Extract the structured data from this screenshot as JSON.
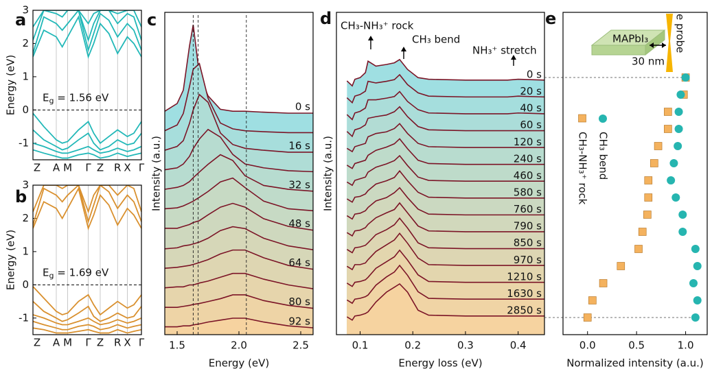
{
  "chart_data": [
    {
      "type": "line",
      "panel_label": "a",
      "ylabel": "Energy (eV)",
      "color": "#22b8b8",
      "xlim": [
        0,
        1
      ],
      "ylim": [
        -1.5,
        3
      ],
      "yticks": [
        -1,
        0,
        1,
        2,
        3
      ],
      "xticks": [
        {
          "value": 0,
          "label": "Z"
        },
        {
          "value": 0.215,
          "label": "A"
        },
        {
          "value": 0.32,
          "label": "M"
        },
        {
          "value": 0.51,
          "label": "Γ"
        },
        {
          "value": 0.62,
          "label": "Z"
        },
        {
          "value": 0.78,
          "label": "R"
        },
        {
          "value": 0.87,
          "label": "X"
        },
        {
          "value": 1,
          "label": "Γ"
        }
      ],
      "zero_line": true,
      "annotation": {
        "main": "E",
        "sub": "g",
        "rest": " = 1.56 eV"
      },
      "x": [
        0,
        0.1,
        0.215,
        0.27,
        0.32,
        0.42,
        0.51,
        0.56,
        0.62,
        0.7,
        0.78,
        0.87,
        0.93,
        1
      ],
      "series": [
        {
          "values": [
            1.6,
            2.4,
            2.2,
            1.9,
            2.2,
            2.8,
            1.6,
            2.0,
            2.6,
            2.3,
            1.7,
            2.2,
            2.0,
            1.6
          ]
        },
        {
          "values": [
            1.7,
            2.8,
            2.6,
            2.4,
            2.6,
            3.0,
            1.8,
            2.3,
            2.9,
            2.7,
            2.2,
            2.6,
            2.4,
            1.8
          ]
        },
        {
          "values": [
            2.1,
            3.0,
            2.9,
            2.8,
            3.0,
            3.0,
            2.1,
            2.6,
            3.0,
            3.0,
            2.6,
            2.9,
            2.8,
            2.1
          ]
        },
        {
          "values": [
            2.5,
            3.0,
            3.0,
            3.0,
            3.0,
            3.0,
            2.6,
            2.9,
            3.0,
            3.0,
            2.9,
            3.0,
            3.0,
            2.5
          ]
        },
        {
          "values": [
            -0.1,
            -0.5,
            -0.9,
            -1.0,
            -0.95,
            -0.6,
            -0.35,
            -0.7,
            -1.0,
            -0.8,
            -0.6,
            -0.8,
            -0.7,
            -0.35
          ]
        },
        {
          "values": [
            -0.6,
            -0.9,
            -1.1,
            -1.2,
            -1.15,
            -0.9,
            -0.7,
            -1.0,
            -1.2,
            -1.1,
            -0.9,
            -1.05,
            -1.0,
            -0.7
          ]
        },
        {
          "values": [
            -1.0,
            -1.1,
            -1.25,
            -1.3,
            -1.3,
            -1.2,
            -1.1,
            -1.2,
            -1.3,
            -1.25,
            -1.15,
            -1.25,
            -1.2,
            -1.1
          ]
        },
        {
          "values": [
            -1.2,
            -1.3,
            -1.4,
            -1.45,
            -1.45,
            -1.35,
            -1.3,
            -1.35,
            -1.45,
            -1.4,
            -1.3,
            -1.4,
            -1.35,
            -1.3
          ]
        }
      ]
    },
    {
      "type": "line",
      "panel_label": "b",
      "ylabel": "Energy (eV)",
      "color": "#d9902e",
      "xlim": [
        0,
        1
      ],
      "ylim": [
        -1.5,
        3
      ],
      "yticks": [
        -1,
        0,
        1,
        2,
        3
      ],
      "xticks": [
        {
          "value": 0,
          "label": "Z"
        },
        {
          "value": 0.215,
          "label": "A"
        },
        {
          "value": 0.32,
          "label": "M"
        },
        {
          "value": 0.51,
          "label": "Γ"
        },
        {
          "value": 0.62,
          "label": "Z"
        },
        {
          "value": 0.78,
          "label": "R"
        },
        {
          "value": 0.87,
          "label": "X"
        },
        {
          "value": 1,
          "label": "Γ"
        }
      ],
      "zero_line": true,
      "annotation": {
        "main": "E",
        "sub": "g",
        "rest": " = 1.69 eV"
      },
      "x": [
        0,
        0.1,
        0.215,
        0.27,
        0.32,
        0.42,
        0.51,
        0.56,
        0.62,
        0.7,
        0.78,
        0.87,
        0.93,
        1
      ],
      "series": [
        {
          "values": [
            1.7,
            2.5,
            2.3,
            2.0,
            2.3,
            2.9,
            1.7,
            2.1,
            2.7,
            2.4,
            1.8,
            2.3,
            2.1,
            1.7
          ]
        },
        {
          "values": [
            1.8,
            2.9,
            2.7,
            2.5,
            2.7,
            3.0,
            1.9,
            2.4,
            3.0,
            2.8,
            2.3,
            2.7,
            2.5,
            1.9
          ]
        },
        {
          "values": [
            2.2,
            3.0,
            3.0,
            2.9,
            3.0,
            3.0,
            2.2,
            2.7,
            3.0,
            3.0,
            2.7,
            3.0,
            2.9,
            2.2
          ]
        },
        {
          "values": [
            -0.05,
            -0.4,
            -0.8,
            -0.9,
            -0.85,
            -0.5,
            -0.3,
            -0.6,
            -0.9,
            -0.7,
            -0.5,
            -0.7,
            -0.6,
            -0.3
          ]
        },
        {
          "values": [
            -0.5,
            -0.8,
            -1.0,
            -1.1,
            -1.05,
            -0.85,
            -0.65,
            -0.95,
            -1.1,
            -1.0,
            -0.85,
            -1.0,
            -0.95,
            -0.65
          ]
        },
        {
          "values": [
            -0.9,
            -1.0,
            -1.15,
            -1.2,
            -1.2,
            -1.1,
            -1.0,
            -1.1,
            -1.2,
            -1.15,
            -1.05,
            -1.15,
            -1.1,
            -1.0
          ]
        },
        {
          "values": [
            -1.1,
            -1.2,
            -1.3,
            -1.35,
            -1.35,
            -1.25,
            -1.2,
            -1.25,
            -1.35,
            -1.3,
            -1.2,
            -1.3,
            -1.25,
            -1.2
          ]
        },
        {
          "values": [
            -1.3,
            -1.35,
            -1.45,
            -1.45,
            -1.45,
            -1.4,
            -1.35,
            -1.4,
            -1.45,
            -1.45,
            -1.35,
            -1.45,
            -1.4,
            -1.35
          ]
        }
      ]
    },
    {
      "type": "waterfall",
      "panel_label": "c",
      "xlabel": "Energy  (eV)",
      "ylabel": "Intensity (a.u.)",
      "line_color": "#7b1426",
      "fill_colors": [
        "#9fdfe2",
        "#f6d3a0"
      ],
      "xlim": [
        1.4,
        2.6
      ],
      "xticks": [
        1.5,
        {
          "value": 2,
          "label": "2.0"
        },
        2.5
      ],
      "vlines": [
        1.63,
        1.67,
        2.06
      ],
      "x": [
        1.4,
        1.5,
        1.55,
        1.6,
        1.63,
        1.68,
        1.75,
        1.85,
        1.95,
        2.05,
        2.2,
        2.4,
        2.6
      ],
      "categories": [
        "0 s",
        null,
        "16 s",
        null,
        "32 s",
        null,
        "48 s",
        null,
        "64 s",
        null,
        "80 s",
        "92 s"
      ],
      "series": [
        {
          "values": [
            0.1,
            0.5,
            1.2,
            3.5,
            4.6,
            2.0,
            0.9,
            0.2,
            0.1,
            0.1,
            0.05,
            0,
            0
          ]
        },
        {
          "values": [
            0.1,
            0.4,
            1.0,
            2.4,
            3.3,
            3.6,
            1.8,
            0.5,
            0.2,
            0.1,
            0.05,
            0,
            0
          ]
        },
        {
          "values": [
            0.1,
            0.3,
            0.6,
            1.5,
            2.2,
            3.0,
            2.6,
            1.0,
            0.4,
            0.2,
            0.1,
            0,
            0
          ]
        },
        {
          "values": [
            0.1,
            0.2,
            0.4,
            0.8,
            1.2,
            1.7,
            2.2,
            1.8,
            0.9,
            0.4,
            0.2,
            0.05,
            0
          ]
        },
        {
          "values": [
            0.1,
            0.2,
            0.3,
            0.5,
            0.7,
            1.0,
            1.4,
            1.9,
            1.6,
            0.8,
            0.3,
            0.1,
            0
          ]
        },
        {
          "values": [
            0.1,
            0.15,
            0.25,
            0.4,
            0.5,
            0.7,
            1.0,
            1.5,
            1.7,
            1.2,
            0.5,
            0.1,
            0
          ]
        },
        {
          "values": [
            0.1,
            0.1,
            0.2,
            0.3,
            0.4,
            0.5,
            0.8,
            1.2,
            1.4,
            1.2,
            0.6,
            0.2,
            0
          ]
        },
        {
          "values": [
            0.05,
            0.1,
            0.2,
            0.25,
            0.3,
            0.4,
            0.6,
            1.0,
            1.2,
            1.1,
            0.6,
            0.2,
            0
          ]
        },
        {
          "values": [
            0.05,
            0.1,
            0.15,
            0.2,
            0.25,
            0.35,
            0.5,
            0.8,
            1.0,
            1.0,
            0.6,
            0.2,
            0
          ]
        },
        {
          "values": [
            0.05,
            0.1,
            0.1,
            0.2,
            0.2,
            0.3,
            0.4,
            0.6,
            0.8,
            0.8,
            0.5,
            0.2,
            0
          ]
        },
        {
          "values": [
            0.05,
            0.05,
            0.1,
            0.15,
            0.2,
            0.25,
            0.35,
            0.5,
            0.7,
            0.7,
            0.4,
            0.15,
            0
          ]
        },
        {
          "values": [
            0.05,
            0.05,
            0.1,
            0.1,
            0.15,
            0.2,
            0.3,
            0.4,
            0.5,
            0.5,
            0.3,
            0.1,
            0
          ]
        }
      ]
    },
    {
      "type": "waterfall",
      "panel_label": "d",
      "xlabel": "Energy loss (eV)",
      "ylabel": "Intensity (a.u.)",
      "line_color": "#7b1426",
      "fill_colors": [
        "#9fdfe2",
        "#f6d3a0"
      ],
      "xlim": [
        0.055,
        0.45
      ],
      "xticks": [
        0.1,
        0.2,
        0.3,
        0.4
      ],
      "annotations": [
        "CH₃-NH₃⁺ rock",
        "CH₃ bend",
        "NH₃⁺ stretch"
      ],
      "x": [
        0.075,
        0.085,
        0.09,
        0.1,
        0.11,
        0.115,
        0.13,
        0.15,
        0.165,
        0.175,
        0.19,
        0.21,
        0.23,
        0.3,
        0.38,
        0.4,
        0.45
      ],
      "categories": [
        "0 s",
        "20 s",
        "40 s",
        "60 s",
        "120 s",
        "240 s",
        "460 s",
        "580 s",
        "760 s",
        "790 s",
        "850 s",
        "970 s",
        "1210 s",
        "1630 s",
        "2850 s"
      ],
      "series": [
        {
          "values": [
            0,
            -0.3,
            0.1,
            0.2,
            0.5,
            1.2,
            0.9,
            1.0,
            1.1,
            1.3,
            0.7,
            0.2,
            0.1,
            0.05,
            0.05,
            0.1,
            0.05
          ]
        },
        {
          "values": [
            0,
            -0.3,
            0.1,
            0.2,
            0.4,
            1.0,
            0.9,
            1.0,
            1.1,
            1.4,
            0.8,
            0.3,
            0.1,
            0.05,
            0.05,
            0.1,
            0.05
          ]
        },
        {
          "values": [
            0,
            -0.3,
            0.1,
            0.2,
            0.4,
            0.9,
            0.9,
            1.0,
            1.1,
            1.4,
            0.8,
            0.3,
            0.1,
            0.05,
            0.05,
            0.1,
            0.05
          ]
        },
        {
          "values": [
            0,
            -0.3,
            0.1,
            0.2,
            0.4,
            0.8,
            0.9,
            1.0,
            1.2,
            1.5,
            0.9,
            0.3,
            0.1,
            0.05,
            0.05,
            0.05,
            0.05
          ]
        },
        {
          "values": [
            0,
            -0.2,
            0.1,
            0.2,
            0.3,
            0.7,
            0.9,
            1.0,
            1.2,
            1.5,
            0.9,
            0.3,
            0.1,
            0.05,
            0.05,
            0.05,
            0.05
          ]
        },
        {
          "values": [
            0,
            -0.2,
            0.1,
            0.2,
            0.3,
            0.6,
            0.9,
            1.1,
            1.3,
            1.6,
            1.0,
            0.3,
            0.1,
            0.05,
            0.05,
            0.05,
            0.05
          ]
        },
        {
          "values": [
            0,
            -0.2,
            0.1,
            0.2,
            0.3,
            0.6,
            0.9,
            1.1,
            1.3,
            1.6,
            1.0,
            0.3,
            0.1,
            0.05,
            0.05,
            0.05,
            0.05
          ]
        },
        {
          "values": [
            0,
            -0.2,
            0.1,
            0.15,
            0.3,
            0.5,
            0.9,
            1.1,
            1.3,
            1.7,
            1.1,
            0.4,
            0.1,
            0.05,
            0.05,
            0.05,
            0.05
          ]
        },
        {
          "values": [
            0,
            -0.2,
            0.1,
            0.15,
            0.3,
            0.5,
            0.9,
            1.1,
            1.4,
            1.7,
            1.1,
            0.4,
            0.1,
            0.05,
            0.05,
            0.05,
            0.05
          ]
        },
        {
          "values": [
            0,
            -0.2,
            0.1,
            0.15,
            0.3,
            0.5,
            0.9,
            1.2,
            1.4,
            1.8,
            1.2,
            0.4,
            0.1,
            0.05,
            0.05,
            0.05,
            0.05
          ]
        },
        {
          "values": [
            0,
            -0.2,
            0.1,
            0.15,
            0.25,
            0.4,
            0.9,
            1.2,
            1.5,
            1.9,
            1.3,
            0.4,
            0.1,
            0.05,
            0.05,
            0.05,
            0.05
          ]
        },
        {
          "values": [
            0,
            -0.2,
            0.1,
            0.1,
            0.2,
            0.4,
            0.9,
            1.3,
            1.6,
            2.0,
            1.4,
            0.5,
            0.1,
            0.05,
            0.05,
            0.05,
            0.05
          ]
        },
        {
          "values": [
            0,
            -0.2,
            0.05,
            0.1,
            0.2,
            0.35,
            0.9,
            1.3,
            1.6,
            2.0,
            1.4,
            0.5,
            0.1,
            0.05,
            0.05,
            0.05,
            0.05
          ]
        },
        {
          "values": [
            0,
            -0.2,
            0.05,
            0.1,
            0.2,
            0.3,
            0.9,
            1.4,
            1.7,
            2.1,
            1.5,
            0.5,
            0.1,
            0.05,
            0.05,
            0.05,
            0.05
          ]
        },
        {
          "values": [
            0,
            -0.2,
            0.05,
            0.1,
            0.2,
            0.3,
            0.9,
            1.5,
            1.8,
            2.0,
            1.5,
            0.4,
            0.1,
            0.05,
            0.05,
            0.05,
            0.05
          ]
        }
      ]
    },
    {
      "type": "scatter",
      "panel_label": "e",
      "xlabel": "Normalized intensity (a.u.)",
      "xlim": [
        -0.25,
        1.22
      ],
      "xticks": [
        {
          "value": 0,
          "label": "0.0"
        },
        {
          "value": 0.5,
          "label": "0.5"
        },
        {
          "value": 1,
          "label": "1.0"
        }
      ],
      "inset": {
        "material": "MAPbI₃",
        "thickness": "30 nm",
        "probe": "e probe"
      },
      "series": [
        {
          "name": "CH₃-NH₃⁺ rock",
          "marker": "square",
          "color": "#f4b25e",
          "values": [
            1.0,
            0.98,
            0.82,
            0.82,
            0.72,
            0.68,
            0.62,
            0.62,
            0.61,
            0.56,
            0.52,
            0.34,
            0.16,
            0.05,
            0.0
          ]
        },
        {
          "name": "CH₃ bend",
          "marker": "circle",
          "color": "#26b5b0",
          "values": [
            1.0,
            0.95,
            0.93,
            0.93,
            0.92,
            0.88,
            0.85,
            0.9,
            0.97,
            0.97,
            1.1,
            1.12,
            1.08,
            1.12,
            1.1
          ]
        }
      ]
    }
  ]
}
